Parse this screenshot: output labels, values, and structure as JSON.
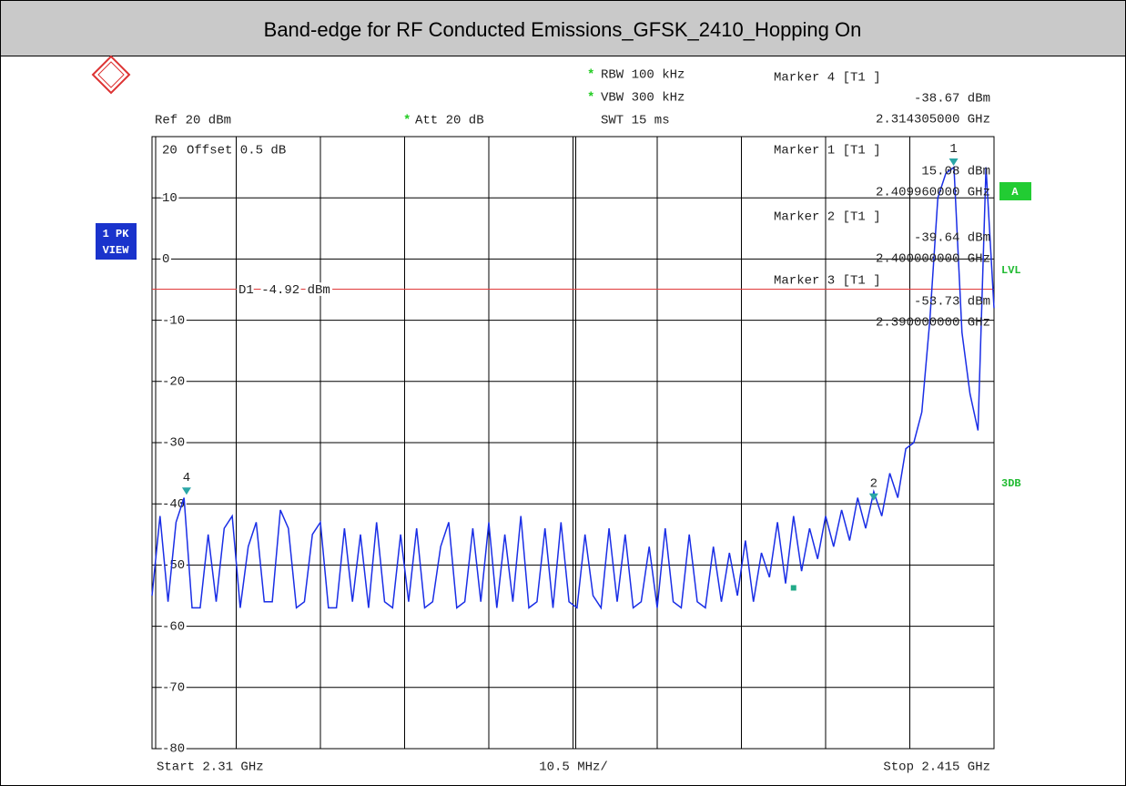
{
  "chart_data": {
    "type": "line",
    "title": "Band-edge for RF Conducted Emissions_GFSK_2410_Hopping On",
    "settings": {
      "rbw": "RBW 100 kHz",
      "vbw": "VBW 300 kHz",
      "swt": "SWT 15 ms",
      "ref": "Ref 20 dBm",
      "att": "Att 20 dB",
      "offset": "Offset 0.5 dB",
      "star": "*",
      "trace_mode": [
        "1 PK",
        "VIEW"
      ],
      "side_labels": [
        "A",
        "LVL",
        "3DB"
      ]
    },
    "footer": {
      "start": "Start 2.31 GHz",
      "span_div": "10.5 MHz/",
      "stop": "Stop 2.415 GHz"
    },
    "xlim": [
      2.31,
      2.415
    ],
    "xgrid": [
      2.31,
      2.3205,
      2.331,
      2.3415,
      2.352,
      2.3625,
      2.373,
      2.3835,
      2.394,
      2.4045,
      2.415
    ],
    "ylim": [
      -80,
      20
    ],
    "yticks": [
      -80,
      -70,
      -60,
      -50,
      -40,
      -30,
      -20,
      -10,
      0,
      10,
      20
    ],
    "grid": true,
    "display_line": {
      "name": "D1",
      "value": -4.92,
      "label": "D1 -4.92 dBm",
      "color": "#e03a3a"
    },
    "x": [
      2.31,
      2.311,
      2.312,
      2.313,
      2.314,
      2.315,
      2.316,
      2.317,
      2.318,
      2.319,
      2.32,
      2.321,
      2.322,
      2.323,
      2.324,
      2.325,
      2.326,
      2.327,
      2.328,
      2.329,
      2.33,
      2.331,
      2.332,
      2.333,
      2.334,
      2.335,
      2.336,
      2.337,
      2.338,
      2.339,
      2.34,
      2.341,
      2.342,
      2.343,
      2.344,
      2.345,
      2.346,
      2.347,
      2.348,
      2.349,
      2.35,
      2.351,
      2.352,
      2.353,
      2.354,
      2.355,
      2.356,
      2.357,
      2.358,
      2.359,
      2.36,
      2.361,
      2.362,
      2.363,
      2.364,
      2.365,
      2.366,
      2.367,
      2.368,
      2.369,
      2.37,
      2.371,
      2.372,
      2.373,
      2.374,
      2.375,
      2.376,
      2.377,
      2.378,
      2.379,
      2.38,
      2.381,
      2.382,
      2.383,
      2.384,
      2.385,
      2.386,
      2.387,
      2.388,
      2.389,
      2.39,
      2.391,
      2.392,
      2.393,
      2.394,
      2.395,
      2.396,
      2.397,
      2.398,
      2.399,
      2.4,
      2.401,
      2.402,
      2.403,
      2.404,
      2.405,
      2.406,
      2.407,
      2.408,
      2.409,
      2.41,
      2.411,
      2.412,
      2.413,
      2.414,
      2.415
    ],
    "series": [
      {
        "name": "T1",
        "color": "#1a2ee6",
        "values": [
          -55,
          -42,
          -56,
          -43,
          -39,
          -57,
          -57,
          -45,
          -56,
          -44,
          -42,
          -57,
          -47,
          -43,
          -56,
          -56,
          -41,
          -44,
          -57,
          -56,
          -45,
          -43,
          -57,
          -57,
          -44,
          -56,
          -45,
          -57,
          -43,
          -56,
          -57,
          -45,
          -56,
          -44,
          -57,
          -56,
          -47,
          -43,
          -57,
          -56,
          -44,
          -56,
          -43,
          -57,
          -45,
          -56,
          -42,
          -57,
          -56,
          -44,
          -57,
          -43,
          -56,
          -57,
          -45,
          -55,
          -57,
          -44,
          -56,
          -45,
          -57,
          -56,
          -47,
          -57,
          -44,
          -56,
          -57,
          -45,
          -56,
          -57,
          -47,
          -56,
          -48,
          -55,
          -46,
          -56,
          -48,
          -52,
          -43,
          -53,
          -42,
          -51,
          -44,
          -49,
          -42,
          -47,
          -41,
          -46,
          -39,
          -44,
          -38,
          -42,
          -35,
          -39,
          -31,
          -30,
          -25,
          -10,
          10,
          14,
          15,
          -12,
          -22,
          -28,
          15,
          -8
        ]
      }
    ],
    "marker_color": "#2aa6a6",
    "markers": [
      {
        "number": "1",
        "label": "Marker 1 [T1 ]",
        "x": 2.40996,
        "value": 15.08,
        "value_label": "15.08 dBm",
        "x_label": "2.409960000 GHz"
      },
      {
        "number": "2",
        "label": "Marker 2 [T1 ]",
        "x": 2.4,
        "value": -39.64,
        "value_label": "-39.64 dBm",
        "x_label": "2.400000000 GHz"
      },
      {
        "label": "Marker 3 [T1 ]",
        "x": 2.39,
        "value": -53.73,
        "value_label": "-53.73 dBm",
        "x_label": "2.390000000 GHz"
      },
      {
        "number": "4",
        "label": "Marker 4 [T1 ]",
        "x": 2.314305,
        "value": -38.67,
        "value_label": "-38.67 dBm",
        "x_label": "2.314305000 GHz"
      }
    ]
  }
}
